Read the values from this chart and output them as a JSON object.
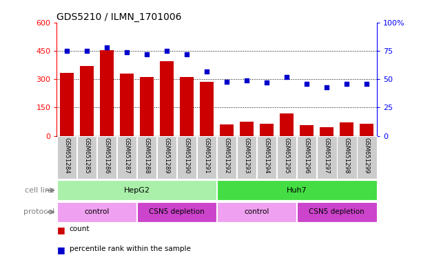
{
  "title": "GDS5210 / ILMN_1701006",
  "samples": [
    "GSM651284",
    "GSM651285",
    "GSM651286",
    "GSM651287",
    "GSM651288",
    "GSM651289",
    "GSM651290",
    "GSM651291",
    "GSM651292",
    "GSM651293",
    "GSM651294",
    "GSM651295",
    "GSM651296",
    "GSM651297",
    "GSM651298",
    "GSM651299"
  ],
  "counts": [
    335,
    370,
    455,
    328,
    312,
    395,
    312,
    285,
    60,
    75,
    65,
    120,
    58,
    45,
    70,
    65
  ],
  "percentiles": [
    75,
    75,
    78,
    74,
    72,
    75,
    72,
    57,
    48,
    49,
    47,
    52,
    46,
    43,
    46,
    46
  ],
  "ylim_left": [
    0,
    600
  ],
  "ylim_right": [
    0,
    100
  ],
  "yticks_left": [
    0,
    150,
    300,
    450,
    600
  ],
  "yticks_right": [
    0,
    25,
    50,
    75,
    100
  ],
  "cell_line_groups": [
    {
      "label": "HepG2",
      "start": 0,
      "end": 8,
      "color": "#aaf0aa"
    },
    {
      "label": "Huh7",
      "start": 8,
      "end": 16,
      "color": "#44dd44"
    }
  ],
  "protocol_groups": [
    {
      "label": "control",
      "start": 0,
      "end": 4,
      "color": "#f0a0f0"
    },
    {
      "label": "CSN5 depletion",
      "start": 4,
      "end": 8,
      "color": "#cc44cc"
    },
    {
      "label": "control",
      "start": 8,
      "end": 12,
      "color": "#f0a0f0"
    },
    {
      "label": "CSN5 depletion",
      "start": 12,
      "end": 16,
      "color": "#cc44cc"
    }
  ],
  "bar_color": "#cc0000",
  "dot_color": "#0000cc",
  "tick_bg_color": "#cccccc",
  "legend_items": [
    {
      "label": "count",
      "color": "#cc0000"
    },
    {
      "label": "percentile rank within the sample",
      "color": "#0000cc"
    }
  ]
}
